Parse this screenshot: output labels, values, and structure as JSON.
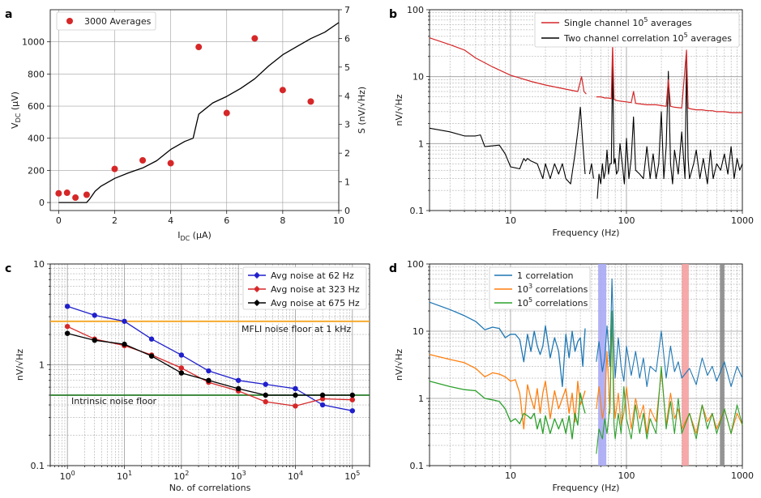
{
  "panel_labels": [
    "a",
    "b",
    "c",
    "d"
  ],
  "colors": {
    "red": "#d62728",
    "blue": "#1f1fcc",
    "black": "#000000",
    "orange": "#f5a623",
    "green": "#2a7d2a",
    "c1": "#1f77b4",
    "c2": "#ff7f0e",
    "c3": "#2ca02c",
    "band1": "#a9a9f5",
    "band2": "#f5a0a0",
    "band3": "#888888"
  },
  "chart_data": [
    {
      "id": "a",
      "type": "scatter",
      "title": "",
      "xlabel": "I",
      "xlabel_sub": "DC",
      "xlabel_unit": " (µA)",
      "ylabel": "V",
      "ylabel_sub": "DC",
      "ylabel_unit": " (µV)",
      "y2label": "S (nV/√Hz)",
      "xlim": [
        -0.3,
        10
      ],
      "ylim": [
        -50,
        1200
      ],
      "y2lim": [
        0,
        7
      ],
      "xticks": [
        0,
        2,
        4,
        6,
        8,
        10
      ],
      "yticks": [
        0,
        200,
        400,
        600,
        800,
        1000
      ],
      "y2ticks": [
        0,
        1,
        2,
        3,
        4,
        5,
        6,
        7
      ],
      "legend": "3000 Averages",
      "line_vdc": {
        "x": [
          0,
          0.6,
          1.0,
          1.1,
          1.3,
          1.5,
          2.0,
          2.5,
          3.0,
          3.5,
          4.0,
          4.5,
          4.8,
          5.0,
          5.5,
          6.0,
          6.5,
          7.0,
          7.5,
          8.0,
          8.5,
          9.0,
          9.5,
          10.0
        ],
        "y": [
          0,
          0,
          0,
          20,
          70,
          100,
          150,
          185,
          215,
          260,
          330,
          380,
          400,
          550,
          620,
          660,
          710,
          770,
          850,
          920,
          970,
          1020,
          1060,
          1120
        ]
      },
      "scatter_noise": {
        "x": [
          0,
          0.3,
          0.6,
          1.0,
          2.0,
          3.0,
          4.0,
          5.0,
          6.0,
          7.0,
          8.0,
          9.0
        ],
        "y": [
          0.6,
          0.62,
          0.45,
          0.55,
          1.45,
          1.75,
          1.65,
          5.7,
          3.4,
          6.0,
          4.2,
          3.8
        ]
      }
    },
    {
      "id": "b",
      "type": "line",
      "xlabel": "Frequency (Hz)",
      "ylabel": "nV/√Hz",
      "xlim": [
        2,
        1000
      ],
      "ylim": [
        0.1,
        100
      ],
      "xtick_labels": [
        {
          "v": 10,
          "t": "10"
        },
        {
          "v": 100,
          "t": "100"
        },
        {
          "v": 1000,
          "t": "1000"
        }
      ],
      "ytick_labels": [
        {
          "v": 0.1,
          "t": "0.1"
        },
        {
          "v": 1,
          "t": "1"
        },
        {
          "v": 10,
          "t": "10"
        },
        {
          "v": 100,
          "t": "100"
        }
      ],
      "series": [
        {
          "name": "Single channel 10⁵ averages",
          "legend": [
            "Single channel 10",
            "5",
            " averages"
          ],
          "color": "red",
          "x": [
            2,
            3,
            4,
            5,
            7,
            10,
            15,
            20,
            30,
            38,
            41,
            43,
            45
          ],
          "y": [
            38,
            30,
            25,
            19,
            14,
            10.5,
            8.5,
            7.5,
            6.5,
            6,
            10,
            6,
            5.5
          ],
          "x2": [
            55,
            60,
            65,
            70,
            74,
            76,
            78,
            80,
            82,
            90,
            100,
            110,
            115,
            120,
            150,
            180,
            200,
            220,
            230,
            240,
            260,
            300,
            330,
            340,
            360,
            400,
            450,
            500,
            550,
            600,
            700,
            800,
            900,
            1000
          ],
          "y2": [
            5,
            5,
            4.8,
            4.8,
            4.7,
            30,
            4.6,
            4.5,
            4.4,
            4.3,
            4.2,
            4.1,
            6,
            4,
            3.8,
            3.8,
            3.7,
            3.6,
            9,
            3.6,
            3.5,
            3.4,
            25,
            3.4,
            3.3,
            3.2,
            3.2,
            3.1,
            3.1,
            3.0,
            3.0,
            2.9,
            2.9,
            2.9
          ]
        },
        {
          "name": "Two channel correlation 10⁵ averages",
          "legend": [
            "Two channel correlation 10",
            "5",
            " averages"
          ],
          "color": "black",
          "x": [
            2,
            3,
            4,
            5,
            5.5,
            6,
            8,
            9,
            10,
            12,
            13,
            13.5,
            14,
            15,
            17,
            19,
            20,
            22,
            24,
            26,
            28,
            30,
            33,
            36,
            38,
            40,
            42,
            44
          ],
          "y": [
            1.7,
            1.5,
            1.3,
            1.3,
            1.35,
            0.9,
            0.95,
            0.7,
            0.45,
            0.42,
            0.6,
            0.55,
            0.6,
            0.55,
            0.5,
            0.3,
            0.5,
            0.3,
            0.5,
            0.35,
            0.5,
            0.3,
            0.25,
            0.7,
            1.5,
            3.5,
            1.0,
            0.35
          ],
          "x2": [
            48,
            50,
            52
          ],
          "y2": [
            0.35,
            0.5,
            0.3
          ],
          "x3": [
            56,
            58,
            60,
            62,
            64,
            66,
            68,
            70,
            72,
            74,
            76,
            78,
            80,
            82,
            85,
            88,
            92,
            96,
            100,
            105,
            110,
            115,
            120,
            130,
            140,
            150,
            160,
            170,
            180,
            190,
            200,
            210,
            220,
            230,
            240,
            250,
            260,
            280,
            300,
            320,
            330,
            340,
            350,
            380,
            400,
            430,
            460,
            500,
            530,
            560,
            600,
            650,
            700,
            750,
            800,
            850,
            900,
            950,
            1000
          ],
          "y3": [
            0.15,
            0.35,
            0.25,
            0.5,
            0.3,
            0.4,
            0.8,
            0.35,
            0.5,
            0.5,
            20,
            0.5,
            0.6,
            0.35,
            0.4,
            1.0,
            0.5,
            0.25,
            1.2,
            0.3,
            0.6,
            2.5,
            0.4,
            0.35,
            0.3,
            0.9,
            0.3,
            0.7,
            0.3,
            0.5,
            3,
            0.3,
            0.9,
            12,
            0.5,
            0.25,
            0.8,
            0.35,
            1.5,
            0.3,
            18,
            0.6,
            0.3,
            0.5,
            0.8,
            0.3,
            0.6,
            0.25,
            0.8,
            0.3,
            0.5,
            0.4,
            0.7,
            0.35,
            0.9,
            0.3,
            0.6,
            0.4,
            0.5
          ]
        }
      ]
    },
    {
      "id": "c",
      "type": "line",
      "xlabel": "No. of correlations",
      "ylabel": "nV/√Hz",
      "xlim": [
        0.5,
        200000
      ],
      "ylim": [
        0.1,
        10
      ],
      "xtick_labels": [
        {
          "v": 1,
          "b": "10",
          "e": "0"
        },
        {
          "v": 10,
          "b": "10",
          "e": "1"
        },
        {
          "v": 100,
          "b": "10",
          "e": "2"
        },
        {
          "v": 1000,
          "b": "10",
          "e": "3"
        },
        {
          "v": 10000,
          "b": "10",
          "e": "4"
        },
        {
          "v": 100000,
          "b": "10",
          "e": "5"
        }
      ],
      "ytick_labels": [
        {
          "v": 0.1,
          "t": "0.1"
        },
        {
          "v": 1,
          "t": "1"
        },
        {
          "v": 10,
          "t": "10"
        }
      ],
      "x": [
        1,
        3,
        10,
        30,
        100,
        300,
        1000,
        3000,
        10000,
        30000,
        100000
      ],
      "series": [
        {
          "name": "Avg noise at 62 Hz",
          "color": "blue",
          "values": [
            3.8,
            3.1,
            2.7,
            1.8,
            1.25,
            0.87,
            0.7,
            0.64,
            0.58,
            0.4,
            0.35
          ]
        },
        {
          "name": "Avg noise at 323 Hz",
          "color": "red",
          "values": [
            2.4,
            1.8,
            1.55,
            1.25,
            0.93,
            0.67,
            0.55,
            0.43,
            0.39,
            0.46,
            0.45
          ]
        },
        {
          "name": "Avg noise at 675 Hz",
          "color": "black",
          "values": [
            2.05,
            1.75,
            1.6,
            1.22,
            0.83,
            0.7,
            0.58,
            0.5,
            0.5,
            0.5,
            0.5
          ]
        }
      ],
      "hlines": [
        {
          "y": 2.7,
          "color": "orange",
          "text": "MFLI noise floor at 1 kHz"
        },
        {
          "y": 0.5,
          "color": "green",
          "text": "Intrinsic noise floor"
        }
      ]
    },
    {
      "id": "d",
      "type": "line",
      "xlabel": "Frequency (Hz)",
      "ylabel": "nV/√Hz",
      "xlim": [
        2,
        1000
      ],
      "ylim": [
        0.1,
        100
      ],
      "xtick_labels": [
        {
          "v": 10,
          "t": "10"
        },
        {
          "v": 100,
          "t": "100"
        },
        {
          "v": 1000,
          "t": "1000"
        }
      ],
      "ytick_labels": [
        {
          "v": 0.1,
          "t": "0.1"
        },
        {
          "v": 1,
          "t": "1"
        },
        {
          "v": 10,
          "t": "10"
        },
        {
          "v": 100,
          "t": "100"
        }
      ],
      "bands": [
        {
          "x0": 57,
          "x1": 67,
          "color": "band1"
        },
        {
          "x0": 300,
          "x1": 345,
          "color": "band2"
        },
        {
          "x0": 640,
          "x1": 700,
          "color": "band3"
        }
      ],
      "series": [
        {
          "name": "1 correlation",
          "legend": [
            "1 correlation"
          ],
          "color": "c1",
          "x": [
            2,
            3,
            4,
            5,
            6,
            7,
            8,
            9,
            10,
            11,
            12,
            13,
            14,
            15,
            16,
            17,
            18,
            19,
            20,
            22,
            24,
            26,
            28,
            30,
            32,
            34,
            36,
            38,
            40,
            42,
            44
          ],
          "y": [
            27,
            21,
            17,
            14,
            10.5,
            11.5,
            11,
            8,
            9,
            9,
            7.5,
            3.5,
            9,
            5,
            10,
            6,
            4.5,
            6,
            12,
            4,
            8,
            5,
            1.5,
            9,
            4,
            10,
            5,
            7,
            8,
            3,
            11
          ],
          "x2": [
            55,
            58,
            62,
            65,
            68,
            72,
            75,
            78,
            80,
            85,
            90,
            95,
            100,
            110,
            120,
            130,
            140,
            150,
            160,
            180,
            200,
            220,
            240,
            260,
            280,
            300,
            350,
            400,
            450,
            500,
            550,
            600,
            700,
            800,
            900,
            1000
          ],
          "y2": [
            3.5,
            7,
            2.5,
            4,
            12,
            3,
            60,
            5,
            2,
            8,
            3,
            1.8,
            6,
            2.2,
            5,
            2,
            4,
            1.5,
            3,
            2.5,
            10,
            2,
            6,
            2.5,
            3.5,
            2,
            2.8,
            1.6,
            4,
            2.2,
            3,
            1.8,
            3.5,
            1.5,
            3,
            2
          ]
        },
        {
          "name": "10³ correlations",
          "legend": [
            "10",
            "3",
            " correlations"
          ],
          "color": "c2",
          "x": [
            2,
            3,
            4,
            5,
            6,
            7,
            8,
            9,
            10,
            11,
            12,
            13,
            14,
            15,
            16,
            17,
            18,
            19,
            20,
            22,
            24,
            26,
            28,
            30,
            32,
            34,
            36,
            38,
            40,
            42,
            44
          ],
          "y": [
            4.5,
            3.8,
            3.4,
            2.8,
            2.1,
            2.4,
            2.3,
            2.1,
            1.8,
            1.9,
            1.2,
            0.35,
            1.6,
            1.0,
            0.7,
            1.4,
            0.6,
            1.2,
            1.8,
            0.5,
            1.3,
            0.7,
            1.0,
            1.4,
            0.6,
            1.2,
            0.45,
            1.8,
            0.8,
            1.0,
            1.3
          ],
          "x2": [
            55,
            58,
            62,
            65,
            68,
            72,
            75,
            78,
            80,
            85,
            90,
            95,
            100,
            110,
            120,
            130,
            140,
            150,
            160,
            180,
            200,
            220,
            240,
            260,
            280,
            300,
            350,
            400,
            450,
            500,
            550,
            600,
            700,
            800,
            900,
            1000
          ],
          "y2": [
            0.7,
            1.5,
            0.5,
            0.8,
            5,
            0.6,
            15,
            1.0,
            0.5,
            1.2,
            0.4,
            0.6,
            1.5,
            0.35,
            1.0,
            0.5,
            0.8,
            0.3,
            0.7,
            0.45,
            2.5,
            0.4,
            1.2,
            0.5,
            0.7,
            0.35,
            0.6,
            0.3,
            0.8,
            0.45,
            0.6,
            0.35,
            0.7,
            0.3,
            0.6,
            0.4
          ]
        },
        {
          "name": "10⁵ correlations",
          "legend": [
            "10",
            "5",
            " correlations"
          ],
          "color": "c3",
          "x": [
            2,
            3,
            4,
            5,
            6,
            7,
            8,
            9,
            10,
            11,
            12,
            13,
            14,
            15,
            16,
            17,
            18,
            19,
            20,
            22,
            24,
            26,
            28,
            30,
            32,
            34,
            36,
            38,
            40,
            42,
            44
          ],
          "y": [
            1.8,
            1.5,
            1.35,
            1.3,
            1.0,
            0.95,
            0.9,
            0.7,
            0.45,
            0.5,
            0.42,
            0.6,
            0.55,
            0.5,
            0.6,
            0.35,
            0.5,
            0.3,
            0.55,
            0.3,
            0.5,
            0.35,
            0.5,
            0.3,
            0.55,
            0.25,
            0.6,
            0.4,
            1.2,
            0.8,
            0.6
          ],
          "x2": [
            55,
            58,
            62,
            65,
            68,
            72,
            75,
            78,
            80,
            85,
            90,
            95,
            100,
            110,
            120,
            130,
            140,
            150,
            160,
            180,
            200,
            220,
            240,
            260,
            280,
            300,
            350,
            400,
            450,
            500,
            550,
            600,
            700,
            800,
            900,
            1000
          ],
          "y2": [
            0.15,
            0.35,
            0.25,
            0.5,
            0.3,
            0.8,
            20,
            0.4,
            0.25,
            0.6,
            0.3,
            1.5,
            0.5,
            0.25,
            0.8,
            0.3,
            0.6,
            0.25,
            0.5,
            0.3,
            3,
            0.35,
            0.9,
            0.3,
            1.0,
            0.3,
            0.6,
            0.25,
            0.8,
            0.35,
            0.6,
            0.3,
            0.7,
            0.3,
            0.8,
            0.4
          ]
        }
      ]
    }
  ]
}
